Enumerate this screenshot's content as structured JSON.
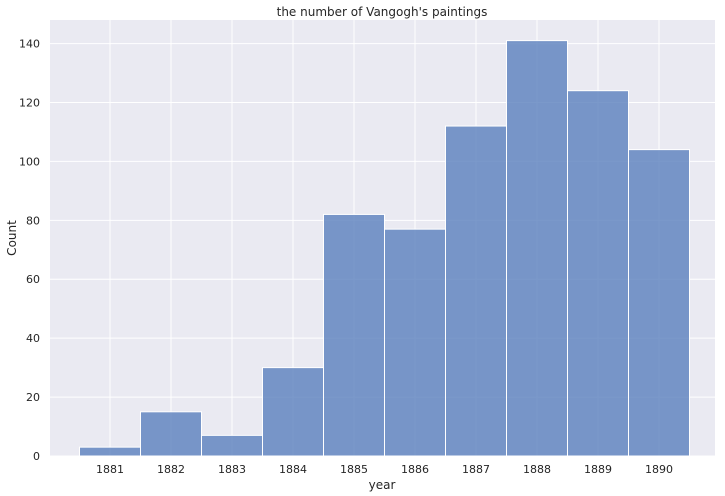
{
  "chart_data": {
    "type": "bar",
    "title": "the number of Vangogh's paintings",
    "xlabel": "year",
    "ylabel": "Count",
    "categories": [
      "1881",
      "1882",
      "1883",
      "1884",
      "1885",
      "1886",
      "1887",
      "1888",
      "1889",
      "1890"
    ],
    "values": [
      3,
      15,
      7,
      30,
      82,
      77,
      112,
      141,
      124,
      104
    ],
    "ylim": [
      0,
      148
    ],
    "yticks": [
      0,
      20,
      40,
      60,
      80,
      100,
      120,
      140
    ],
    "grid": true,
    "bar_color": "#5a7fbd",
    "background_color": "#eaeaf2"
  }
}
